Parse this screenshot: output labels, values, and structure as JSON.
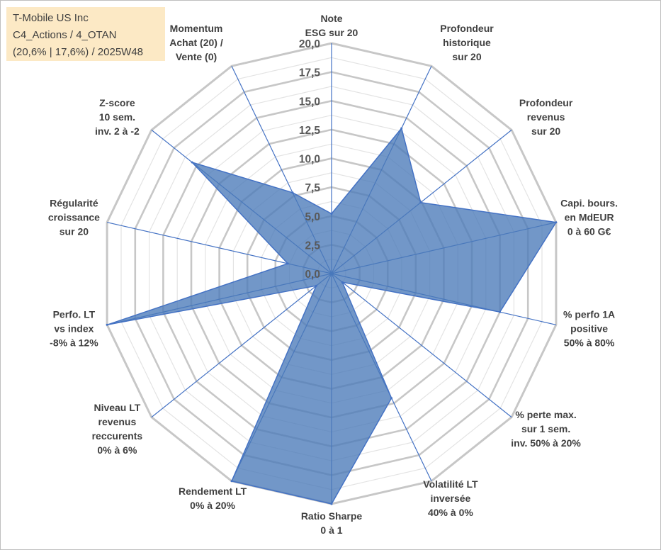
{
  "header": {
    "line1": "T-Mobile US Inc",
    "line2": "C4_Actions / 4_OTAN",
    "line3": "(20,6% | 17,6%) / 2025W48"
  },
  "chart_data": {
    "type": "radar",
    "rmin": 0,
    "rmax": 20,
    "tick_step": 2.5,
    "minor_rings_per_major": 1,
    "ticks": [
      "0,0",
      "2,5",
      "5,0",
      "7,5",
      "10,0",
      "12,5",
      "15,0",
      "17,5",
      "20,0"
    ],
    "grid": true,
    "axes": [
      {
        "label": [
          "Note",
          "ESG sur 20"
        ],
        "value": 5.2
      },
      {
        "label": [
          "Profondeur",
          "historique",
          "sur 20"
        ],
        "value": 14.0
      },
      {
        "label": [
          "Profondeur",
          "revenus",
          "sur 20"
        ],
        "value": 9.9
      },
      {
        "label": [
          "Capi. bours.",
          "en MdEUR",
          "0 à 60 G€"
        ],
        "value": 20.0
      },
      {
        "label": [
          "% perfo 1A",
          "positive",
          "50% à 80%"
        ],
        "value": 15.0
      },
      {
        "label": [
          "% perte max.",
          "sur 1 sem.",
          "inv. 50% à 20%"
        ],
        "value": 1.2
      },
      {
        "label": [
          "Volatilité LT",
          "inversée",
          "40% à 0%"
        ],
        "value": 12.0
      },
      {
        "label": [
          "Ratio Sharpe",
          "0 à 1"
        ],
        "value": 20.0
      },
      {
        "label": [
          "Rendement LT",
          "0% à 20%"
        ],
        "value": 20.0
      },
      {
        "label": [
          "Niveau LT",
          "revenus",
          "reccurents",
          "0% à 6%"
        ],
        "value": 1.7
      },
      {
        "label": [
          "Perfo. LT",
          "vs index",
          "-8% à 12%"
        ],
        "value": 20.0
      },
      {
        "label": [
          "Régularité",
          "croissance",
          "sur 20"
        ],
        "value": 3.9
      },
      {
        "label": [
          "Z-score",
          "10 sem.",
          "inv. 2 à -2"
        ],
        "value": 15.5
      },
      {
        "label": [
          "Momentum",
          "Achat (20) /",
          "Vente (0)"
        ],
        "value": 7.8
      }
    ],
    "colors": {
      "fill": "#4a7ab8",
      "stroke": "#4472c4",
      "spoke": "#4472c4",
      "grid_major": "#c7c7c7",
      "grid_minor": "#e3e3e3"
    }
  }
}
